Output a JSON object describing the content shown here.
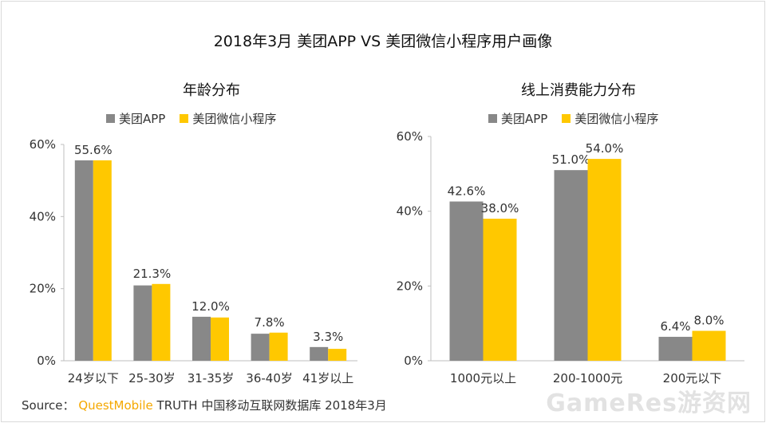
{
  "title": "2018年3月 美团APP VS 美团微信小程序用户画像",
  "colors": {
    "series1": "#888888",
    "series2": "#ffc800",
    "axis": "#bfbfbf",
    "label": "#333333"
  },
  "chart_data": [
    {
      "type": "bar",
      "title": "年龄分布",
      "categories": [
        "24岁以下",
        "25-30岁",
        "31-35岁",
        "36-40岁",
        "41岁以上"
      ],
      "series": [
        {
          "name": "美团APP",
          "values": [
            55.6,
            20.9,
            12.2,
            7.5,
            3.8
          ]
        },
        {
          "name": "美团微信小程序",
          "values": [
            55.6,
            21.3,
            12.0,
            7.8,
            3.3
          ]
        }
      ],
      "data_labels": [
        "55.6%",
        "21.3%",
        "12.0%",
        "7.8%",
        "3.3%"
      ],
      "yticks": [
        "0%",
        "20%",
        "40%",
        "60%"
      ],
      "ylim": [
        0,
        60
      ],
      "xlabel": "",
      "ylabel": "",
      "legend": "top"
    },
    {
      "type": "bar",
      "title": "线上消费能力分布",
      "categories": [
        "1000元以上",
        "200-1000元",
        "200元以下"
      ],
      "series": [
        {
          "name": "美团APP",
          "values": [
            42.6,
            51.0,
            6.4
          ],
          "labels": [
            "42.6%",
            "51.0%",
            "6.4%"
          ]
        },
        {
          "name": "美团微信小程序",
          "values": [
            38.0,
            54.0,
            8.0
          ],
          "labels": [
            "38.0%",
            "54.0%",
            "8.0%"
          ]
        }
      ],
      "yticks": [
        "0%",
        "20%",
        "40%",
        "60%"
      ],
      "ylim": [
        0,
        60
      ],
      "xlabel": "",
      "ylabel": "",
      "legend": "top"
    }
  ],
  "source": {
    "prefix": "Source：",
    "brand": "QuestMobile",
    "suffix": "TRUTH 中国移动互联网数据库 2018年3月"
  },
  "watermark": "GameRes游资网"
}
